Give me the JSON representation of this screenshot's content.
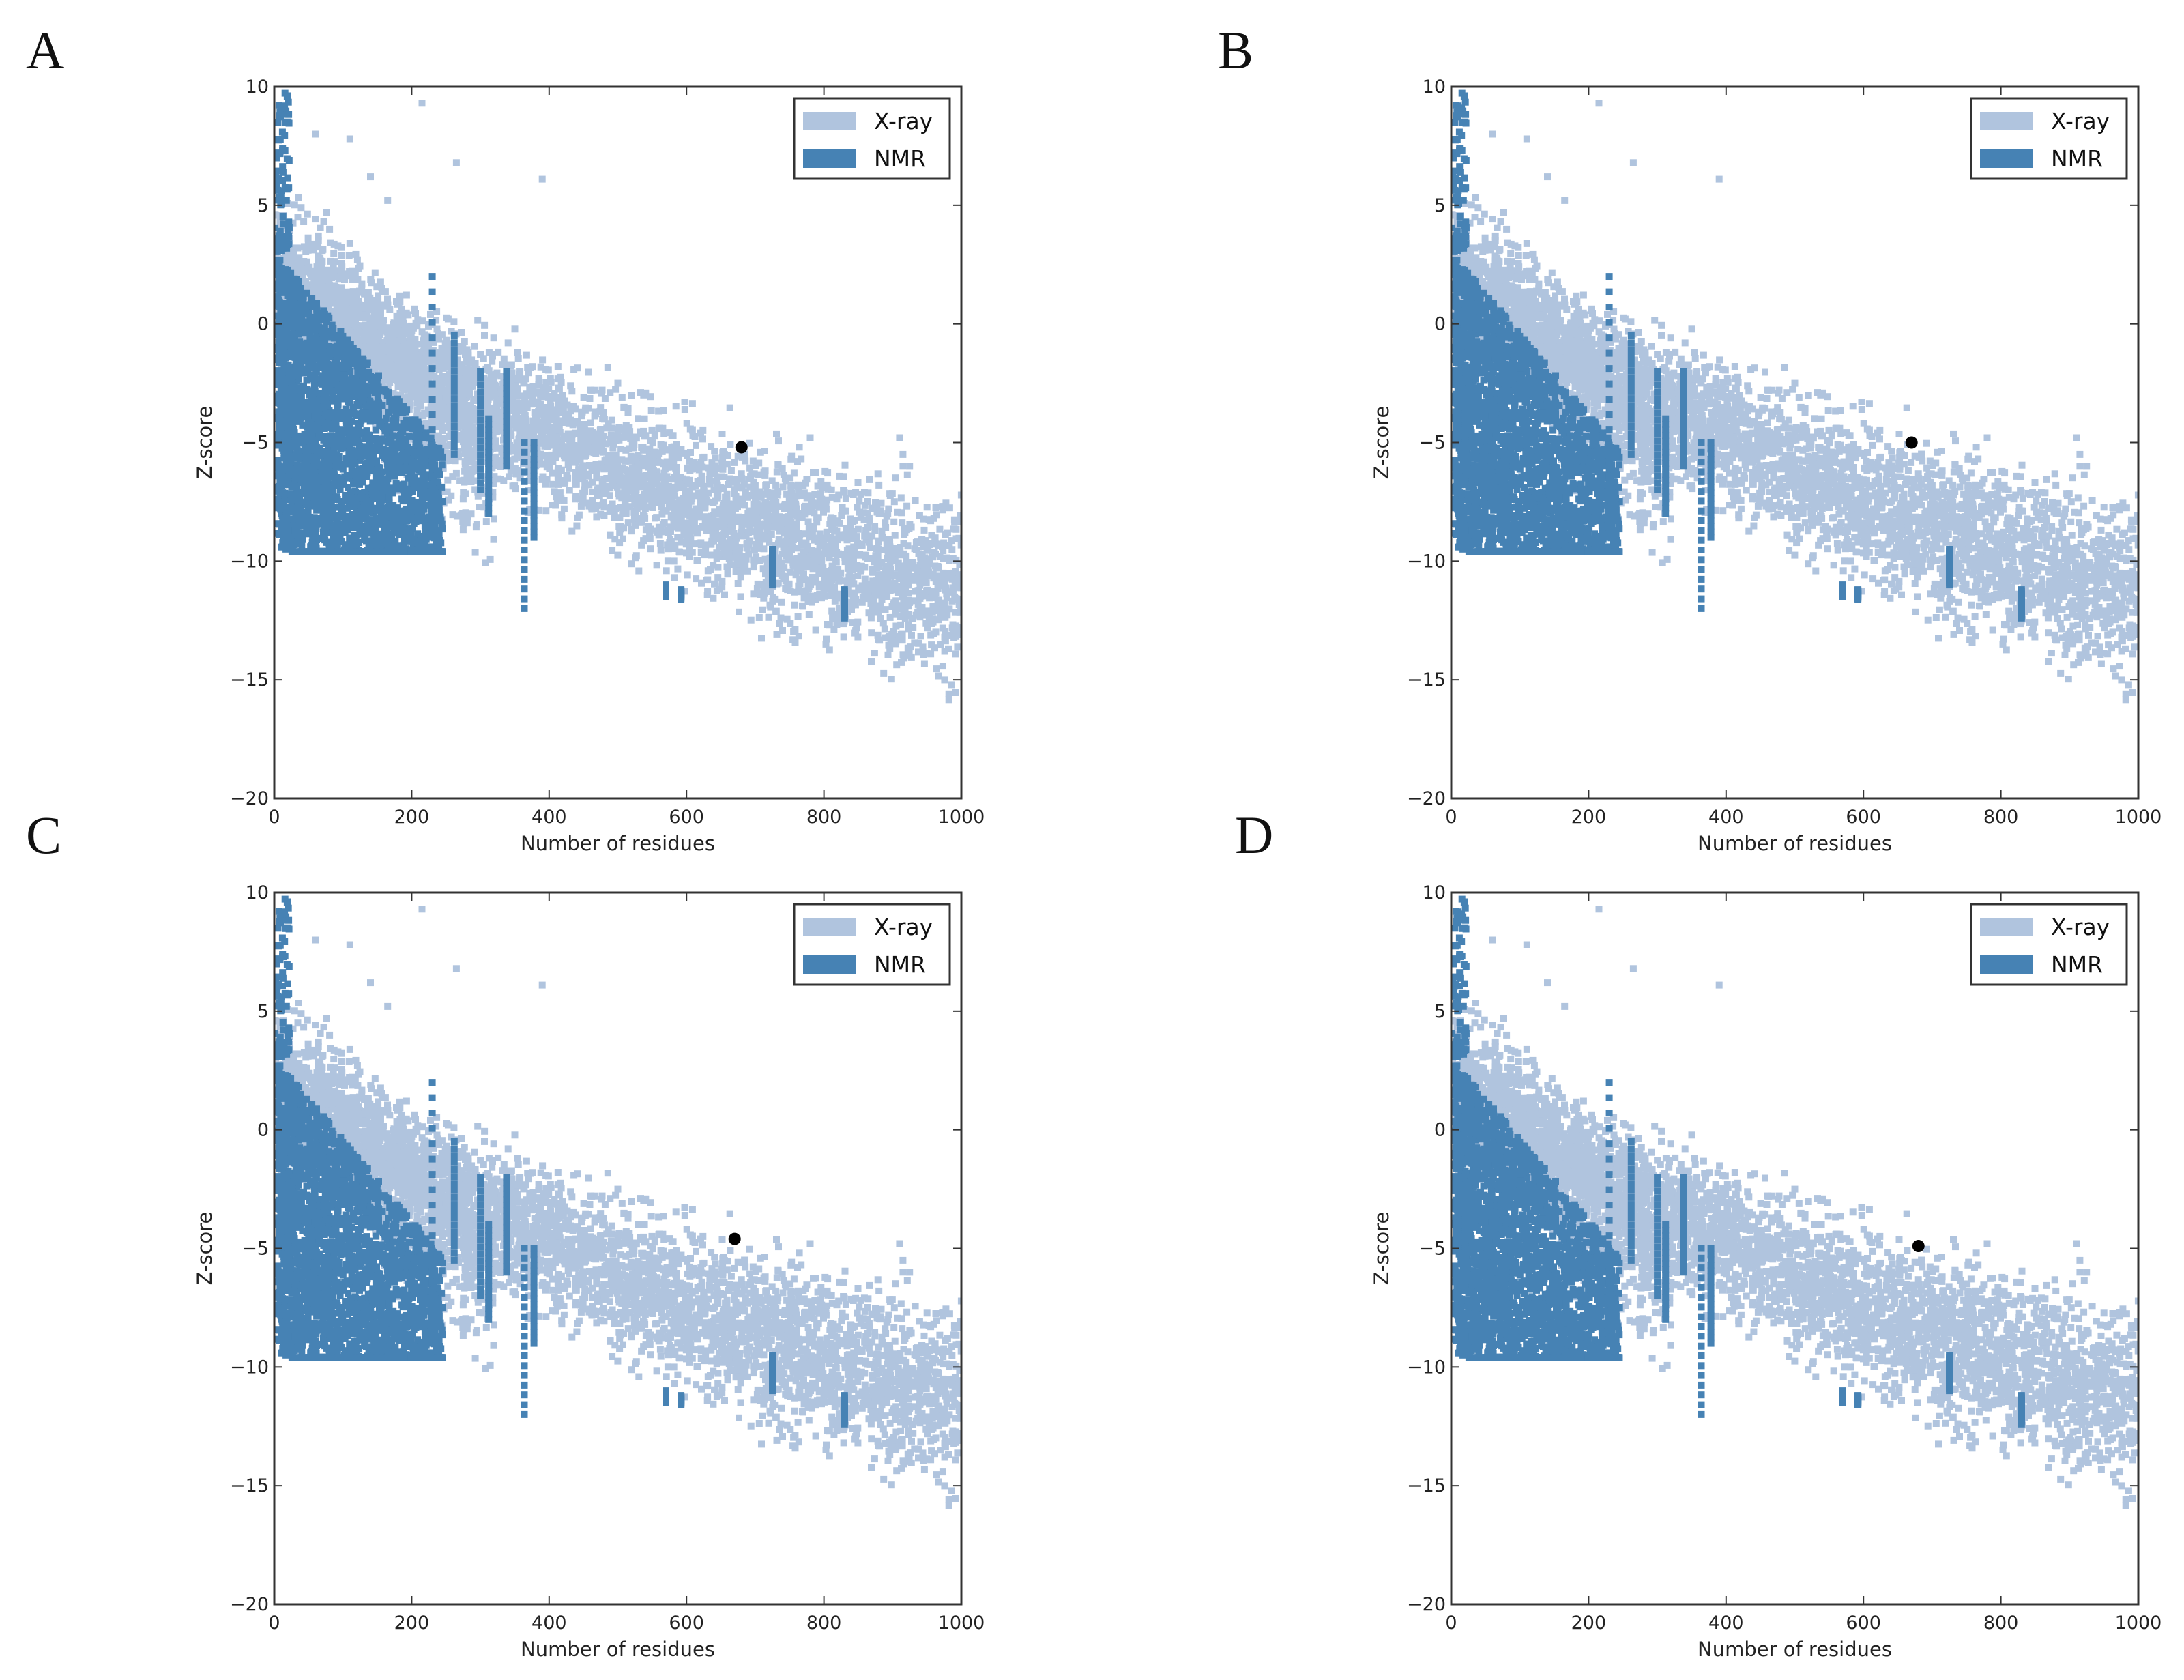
{
  "colors": {
    "xray": "#b0c4de",
    "nmr": "#4682b4",
    "current": "#000000",
    "frame": "#333333"
  },
  "chart_data": [
    {
      "panel": "A",
      "type": "scatter",
      "xlabel": "Number of residues",
      "ylabel": "Z-score",
      "xlim": [
        0,
        1000
      ],
      "ylim": [
        -20,
        10
      ],
      "xticks": [
        0,
        200,
        400,
        600,
        800,
        1000
      ],
      "yticks": [
        -20,
        -15,
        -10,
        -5,
        0,
        5,
        10
      ],
      "grid": false,
      "legend_position": "top-right",
      "series": [
        {
          "name": "X-ray",
          "description": "reference X-ray structures; density band from z≈3 at 0 residues down to z≈-12 at 1000 residues"
        },
        {
          "name": "NMR",
          "description": "reference NMR structures; dense block for 0–250 residues, z≈-9 to 3"
        }
      ],
      "highlight_point": {
        "x": 680,
        "y": -5.2
      }
    },
    {
      "panel": "B",
      "type": "scatter",
      "xlabel": "Number of residues",
      "ylabel": "Z-score",
      "xlim": [
        0,
        1000
      ],
      "ylim": [
        -20,
        10
      ],
      "xticks": [
        0,
        200,
        400,
        600,
        800,
        1000
      ],
      "yticks": [
        -20,
        -15,
        -10,
        -5,
        0,
        5,
        10
      ],
      "grid": false,
      "legend_position": "top-right",
      "series": [
        {
          "name": "X-ray"
        },
        {
          "name": "NMR"
        }
      ],
      "highlight_point": {
        "x": 670,
        "y": -5.0
      }
    },
    {
      "panel": "C",
      "type": "scatter",
      "xlabel": "Number of residues",
      "ylabel": "Z-score",
      "xlim": [
        0,
        1000
      ],
      "ylim": [
        -20,
        10
      ],
      "xticks": [
        0,
        200,
        400,
        600,
        800,
        1000
      ],
      "yticks": [
        -20,
        -15,
        -10,
        -5,
        0,
        5,
        10
      ],
      "grid": false,
      "legend_position": "top-right",
      "series": [
        {
          "name": "X-ray"
        },
        {
          "name": "NMR"
        }
      ],
      "highlight_point": {
        "x": 670,
        "y": -4.6
      }
    },
    {
      "panel": "D",
      "type": "scatter",
      "xlabel": "Number of residues",
      "ylabel": "Z-score",
      "xlim": [
        0,
        1000
      ],
      "ylim": [
        -20,
        10
      ],
      "xticks": [
        0,
        200,
        400,
        600,
        800,
        1000
      ],
      "yticks": [
        -20,
        -15,
        -10,
        -5,
        0,
        5,
        10
      ],
      "grid": false,
      "legend_position": "top-right",
      "series": [
        {
          "name": "X-ray"
        },
        {
          "name": "NMR"
        }
      ],
      "highlight_point": {
        "x": 680,
        "y": -4.9
      }
    }
  ]
}
